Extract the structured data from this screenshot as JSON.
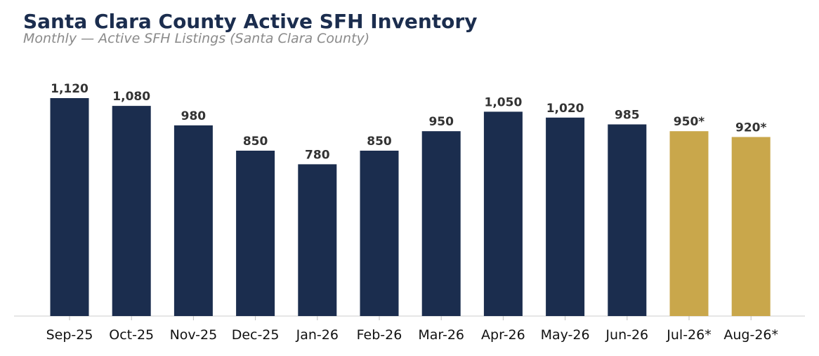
{
  "chart_data": {
    "type": "bar",
    "title": "Santa Clara County Active SFH Inventory",
    "subtitle": "Monthly — Active SFH Listings (Santa Clara County)",
    "categories": [
      "Sep-25",
      "Oct-25",
      "Nov-25",
      "Dec-25",
      "Jan-26",
      "Feb-26",
      "Mar-26",
      "Apr-26",
      "May-26",
      "Jun-26",
      "Jul-26*",
      "Aug-26*"
    ],
    "values": [
      1120,
      1080,
      980,
      850,
      780,
      850,
      950,
      1050,
      1020,
      985,
      950,
      920
    ],
    "value_labels": [
      "1,120",
      "1,080",
      "980",
      "850",
      "780",
      "850",
      "950",
      "1,050",
      "1,020",
      "985",
      "950*",
      "920*"
    ],
    "projected": [
      false,
      false,
      false,
      false,
      false,
      false,
      false,
      false,
      false,
      false,
      true,
      true
    ],
    "ylim": [
      0,
      1250
    ],
    "grid": false,
    "colors": {
      "actual": "#1b2d4e",
      "projected": "#c9a74b",
      "axis": "#dddddd"
    }
  }
}
